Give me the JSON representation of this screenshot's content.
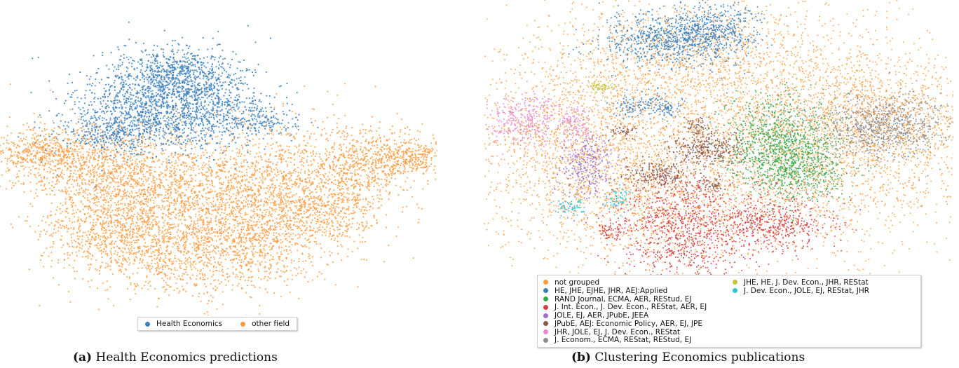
{
  "colors": {
    "orange": "#ff9a3d",
    "blue": "#3a7fbe",
    "green": "#3ca84a",
    "red": "#d63c3f",
    "purple": "#9b71c9",
    "brown": "#8c5a4d",
    "pink": "#e98bcf",
    "gray": "#8c8c8c",
    "olive": "#c3c43c",
    "cyan": "#2fc2cf"
  },
  "panel_a": {
    "tag": "(a)",
    "caption": "Health Economics predictions",
    "legend": [
      {
        "label": "Health Economics",
        "color": "#3a7fbe"
      },
      {
        "label": "other field",
        "color": "#ff9a3d"
      }
    ]
  },
  "panel_b": {
    "tag": "(b)",
    "caption": "Clustering Economics publications",
    "legend": [
      {
        "label": "not grouped",
        "color": "#ff9a3d"
      },
      {
        "label": "HE, JHE, EJHE, JHR, AEJ:Applied",
        "color": "#3a7fbe"
      },
      {
        "label": "RAND Journal, ECMA, AER, REStud, EJ",
        "color": "#3ca84a"
      },
      {
        "label": "J. Int. Econ., J. Dev. Econ., REStat, AER, EJ",
        "color": "#d63c3f"
      },
      {
        "label": "JOLE, EJ, AER, JPubE, JEEA",
        "color": "#9b71c9"
      },
      {
        "label": "JPubE, AEJ: Economic Policy, AER, EJ, JPE",
        "color": "#8c5a4d"
      },
      {
        "label": "JHR, JOLE, EJ, J. Dev. Econ., REStat",
        "color": "#e98bcf"
      },
      {
        "label": "J. Econom., ECMA, REStat, REStud, EJ",
        "color": "#8c8c8c"
      },
      {
        "label": "JHE, HE, J. Dev. Econ., JHR, REStat",
        "color": "#c3c43c"
      },
      {
        "label": "J. Dev. Econ., JOLE, EJ, REStat, JHR",
        "color": "#2fc2cf"
      }
    ]
  },
  "chart_data": [
    {
      "type": "scatter",
      "title": "",
      "xlabel": "",
      "ylabel": "",
      "axes": "hidden",
      "grid": false,
      "legend_position": "bottom",
      "series": [
        {
          "name": "Health Economics",
          "color": "#3a7fbe"
        },
        {
          "name": "other field",
          "color": "#ff9a3d"
        }
      ]
    },
    {
      "type": "scatter",
      "title": "",
      "xlabel": "",
      "ylabel": "",
      "axes": "hidden",
      "grid": false,
      "legend_position": "bottom",
      "series": [
        {
          "name": "not grouped",
          "color": "#ff9a3d"
        },
        {
          "name": "HE, JHE, EJHE, JHR, AEJ:Applied",
          "color": "#3a7fbe"
        },
        {
          "name": "RAND Journal, ECMA, AER, REStud, EJ",
          "color": "#3ca84a"
        },
        {
          "name": "J. Int. Econ., J. Dev. Econ., REStat, AER, EJ",
          "color": "#d63c3f"
        },
        {
          "name": "JOLE, EJ, AER, JPubE, JEEA",
          "color": "#9b71c9"
        },
        {
          "name": "JPubE, AEJ: Economic Policy, AER, EJ, JPE",
          "color": "#8c5a4d"
        },
        {
          "name": "JHR, JOLE, EJ, J. Dev. Econ., REStat",
          "color": "#e98bcf"
        },
        {
          "name": "J. Econom., ECMA, REStat, REStud, EJ",
          "color": "#8c8c8c"
        },
        {
          "name": "JHE, HE, J. Dev. Econ., JHR, REStat",
          "color": "#c3c43c"
        },
        {
          "name": "J. Dev. Econ., JOLE, EJ, REStat, JHR",
          "color": "#2fc2cf"
        }
      ]
    }
  ]
}
